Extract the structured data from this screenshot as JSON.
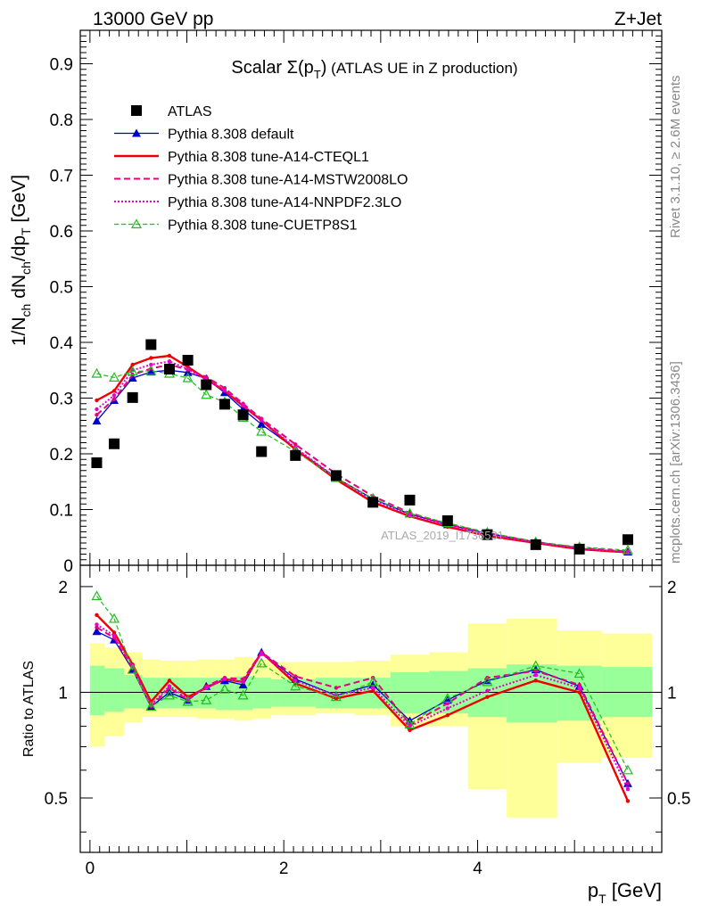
{
  "header": {
    "left": "13000 GeV pp",
    "right": "Z+Jet"
  },
  "side_labels": {
    "rivet": "Rivet 3.1.10, ≥ 2.6M events",
    "mcplots": "mcplots.cern.ch [arXiv:1306.3436]"
  },
  "analysis_id": "ATLAS_2019_I1736531",
  "colors": {
    "atlas": "#000000",
    "default": "#0000cc",
    "cteql1": "#ee0000",
    "mstw": "#e6007e",
    "nnpdf": "#e600d2",
    "cuetp8s1": "#22bb22",
    "band_stat": "#99ff99",
    "band_total": "#ffff99"
  },
  "chart_data": [
    {
      "type": "line",
      "title": "Scalar Σ(p_T) (ATLAS UE in Z production)",
      "ylabel": "1/N_ch dN_ch/dp_T [GeV]",
      "xlim": [
        -0.1,
        5.9
      ],
      "ylim": [
        0,
        0.96
      ],
      "yticks": [
        "0",
        "0.1",
        "0.2",
        "0.3",
        "0.4",
        "0.5",
        "0.6",
        "0.7",
        "0.8",
        "0.9"
      ],
      "legend_position": "top-left",
      "x": [
        0.07,
        0.25,
        0.44,
        0.63,
        0.82,
        1.01,
        1.2,
        1.39,
        1.58,
        1.77,
        2.12,
        2.54,
        2.92,
        3.3,
        3.69,
        4.1,
        4.6,
        5.05,
        5.55
      ],
      "series": [
        {
          "name": "ATLAS",
          "style": "data",
          "values": [
            0.184,
            0.218,
            0.301,
            0.396,
            0.352,
            0.368,
            0.324,
            0.289,
            0.27,
            0.204,
            0.197,
            0.161,
            0.113,
            0.117,
            0.08,
            0.055,
            0.037,
            0.029,
            0.046
          ]
        },
        {
          "name": "Pythia 8.308 default",
          "style": "default",
          "values": [
            0.259,
            0.296,
            0.336,
            0.347,
            0.35,
            0.346,
            0.335,
            0.31,
            0.28,
            0.253,
            0.209,
            0.157,
            0.119,
            0.092,
            0.073,
            0.057,
            0.042,
            0.03,
            0.024
          ]
        },
        {
          "name": "Pythia 8.308 tune-A14-CTEQL1",
          "style": "cteql1",
          "values": [
            0.296,
            0.313,
            0.36,
            0.372,
            0.376,
            0.356,
            0.334,
            0.313,
            0.286,
            0.26,
            0.208,
            0.154,
            0.113,
            0.088,
            0.069,
            0.053,
            0.04,
            0.029,
            0.023
          ]
        },
        {
          "name": "Pythia 8.308 tune-A14-MSTW2008LO",
          "style": "mstw",
          "values": [
            0.27,
            0.298,
            0.342,
            0.353,
            0.36,
            0.351,
            0.338,
            0.318,
            0.29,
            0.263,
            0.217,
            0.164,
            0.124,
            0.094,
            0.074,
            0.058,
            0.042,
            0.031,
            0.025
          ]
        },
        {
          "name": "Pythia 8.308 tune-A14-NNPDF2.3LO",
          "style": "nnpdf",
          "values": [
            0.28,
            0.305,
            0.35,
            0.36,
            0.366,
            0.352,
            0.333,
            0.314,
            0.287,
            0.26,
            0.211,
            0.157,
            0.116,
            0.09,
            0.071,
            0.055,
            0.041,
            0.03,
            0.024
          ]
        },
        {
          "name": "Pythia 8.308 tune-CUETP8S1",
          "style": "cuetp8s1",
          "values": [
            0.344,
            0.337,
            0.348,
            0.349,
            0.344,
            0.336,
            0.306,
            0.293,
            0.265,
            0.24,
            0.204,
            0.157,
            0.12,
            0.093,
            0.076,
            0.059,
            0.042,
            0.033,
            0.027
          ]
        }
      ]
    },
    {
      "type": "line",
      "ylabel": "Ratio to ATLAS",
      "xlabel": "p_T [GeV]",
      "xlim": [
        -0.1,
        5.9
      ],
      "ylim": [
        0.35,
        2.3
      ],
      "yticks_left": [
        "0.5",
        "1",
        "2"
      ],
      "yticks_right": [
        "0.5",
        "1",
        "2"
      ],
      "xticks": [
        "0",
        "2",
        "4"
      ],
      "x": [
        0.07,
        0.25,
        0.44,
        0.63,
        0.82,
        1.01,
        1.2,
        1.39,
        1.58,
        1.77,
        2.12,
        2.54,
        2.92,
        3.3,
        3.69,
        4.1,
        4.6,
        5.05,
        5.55
      ],
      "bins": [
        [
          0.0,
          0.15
        ],
        [
          0.15,
          0.35
        ],
        [
          0.35,
          0.54
        ],
        [
          0.54,
          0.73
        ],
        [
          0.73,
          0.92
        ],
        [
          0.92,
          1.1
        ],
        [
          1.1,
          1.3
        ],
        [
          1.3,
          1.49
        ],
        [
          1.49,
          1.68
        ],
        [
          1.68,
          1.87
        ],
        [
          1.87,
          2.33
        ],
        [
          2.33,
          2.73
        ],
        [
          2.73,
          3.1
        ],
        [
          3.1,
          3.5
        ],
        [
          3.5,
          3.9
        ],
        [
          3.9,
          4.3
        ],
        [
          4.3,
          4.82
        ],
        [
          4.82,
          5.28
        ],
        [
          5.28,
          5.8
        ]
      ],
      "band_stat": [
        [
          0.86,
          1.19
        ],
        [
          0.88,
          1.17
        ],
        [
          0.9,
          1.12
        ],
        [
          0.9,
          1.1
        ],
        [
          0.9,
          1.1
        ],
        [
          0.9,
          1.1
        ],
        [
          0.9,
          1.1
        ],
        [
          0.89,
          1.1
        ],
        [
          0.89,
          1.11
        ],
        [
          0.9,
          1.1
        ],
        [
          0.91,
          1.09
        ],
        [
          0.9,
          1.1
        ],
        [
          0.9,
          1.1
        ],
        [
          0.87,
          1.14
        ],
        [
          0.87,
          1.15
        ],
        [
          0.85,
          1.17
        ],
        [
          0.82,
          1.2
        ],
        [
          0.83,
          1.19
        ],
        [
          0.85,
          1.18
        ]
      ],
      "band_total": [
        [
          0.7,
          1.38
        ],
        [
          0.75,
          1.34
        ],
        [
          0.82,
          1.3
        ],
        [
          0.85,
          1.24
        ],
        [
          0.85,
          1.23
        ],
        [
          0.85,
          1.23
        ],
        [
          0.84,
          1.24
        ],
        [
          0.84,
          1.24
        ],
        [
          0.83,
          1.26
        ],
        [
          0.84,
          1.24
        ],
        [
          0.86,
          1.22
        ],
        [
          0.87,
          1.22
        ],
        [
          0.86,
          1.23
        ],
        [
          0.8,
          1.28
        ],
        [
          0.8,
          1.3
        ],
        [
          0.53,
          1.57
        ],
        [
          0.44,
          1.62
        ],
        [
          0.63,
          1.5
        ],
        [
          0.65,
          1.47
        ]
      ],
      "series": [
        {
          "name": "Pythia 8.308 default",
          "style": "default",
          "values": [
            1.49,
            1.41,
            1.16,
            0.91,
            1.0,
            0.95,
            1.04,
            1.08,
            1.05,
            1.3,
            1.09,
            0.98,
            1.05,
            0.83,
            0.95,
            1.08,
            1.16,
            1.04,
            0.55
          ]
        },
        {
          "name": "Pythia 8.308 tune-A14-CTEQL1",
          "style": "cteql1",
          "values": [
            1.66,
            1.48,
            1.2,
            0.94,
            1.08,
            0.97,
            1.03,
            1.09,
            1.07,
            1.3,
            1.06,
            0.96,
            1.01,
            0.78,
            0.86,
            0.97,
            1.08,
            1.0,
            0.49
          ]
        },
        {
          "name": "Pythia 8.308 tune-A14-MSTW2008LO",
          "style": "mstw",
          "values": [
            1.53,
            1.43,
            1.17,
            0.91,
            1.03,
            0.95,
            1.04,
            1.1,
            1.09,
            1.3,
            1.11,
            1.03,
            1.1,
            0.81,
            0.93,
            1.1,
            1.15,
            1.05,
            0.55
          ]
        },
        {
          "name": "Pythia 8.308 tune-A14-NNPDF2.3LO",
          "style": "nnpdf",
          "values": [
            1.56,
            1.45,
            1.19,
            0.92,
            1.04,
            0.96,
            1.03,
            1.09,
            1.07,
            1.29,
            1.08,
            0.98,
            1.03,
            0.8,
            0.9,
            1.01,
            1.12,
            1.03,
            0.53
          ]
        },
        {
          "name": "Pythia 8.308 tune-CUETP8S1",
          "style": "cuetp8s1",
          "values": [
            1.88,
            1.62,
            1.16,
            0.91,
            0.98,
            0.94,
            0.95,
            1.02,
            0.98,
            1.21,
            1.04,
            0.97,
            1.07,
            0.81,
            0.96,
            1.07,
            1.19,
            1.13,
            0.6
          ]
        }
      ]
    }
  ]
}
